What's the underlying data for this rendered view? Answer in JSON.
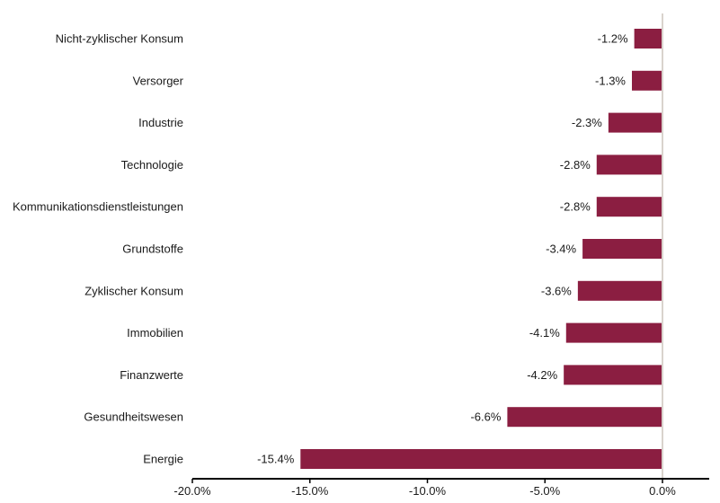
{
  "chart_data": {
    "type": "bar",
    "orientation": "horizontal",
    "categories": [
      "Nicht-zyklischer Konsum",
      "Versorger",
      "Industrie",
      "Technologie",
      "Kommunikationsdienstleistungen",
      "Grundstoffe",
      "Zyklischer Konsum",
      "Immobilien",
      "Finanzwerte",
      "Gesundheitswesen",
      "Energie"
    ],
    "values": [
      -1.2,
      -1.3,
      -2.3,
      -2.8,
      -2.8,
      -3.4,
      -3.6,
      -4.1,
      -4.2,
      -6.6,
      -15.4
    ],
    "data_labels": [
      "-1.2%",
      "-1.3%",
      "-2.3%",
      "-2.8%",
      "-2.8%",
      "-3.4%",
      "-3.6%",
      "-4.1%",
      "-4.2%",
      "-6.6%",
      "-15.4%"
    ],
    "xlim": [
      -20,
      0
    ],
    "x_ticks": [
      -20,
      -15,
      -10,
      -5,
      0
    ],
    "x_tick_labels": [
      "-20.0%",
      "-15.0%",
      "-10.0%",
      "-5.0%",
      "0.0%"
    ],
    "bar_color": "#8b1e41",
    "zero_line_color": "#d9d3cd",
    "axis_color": "#000000",
    "grid": false,
    "legend": "none",
    "title": "",
    "xlabel": "",
    "ylabel": ""
  }
}
